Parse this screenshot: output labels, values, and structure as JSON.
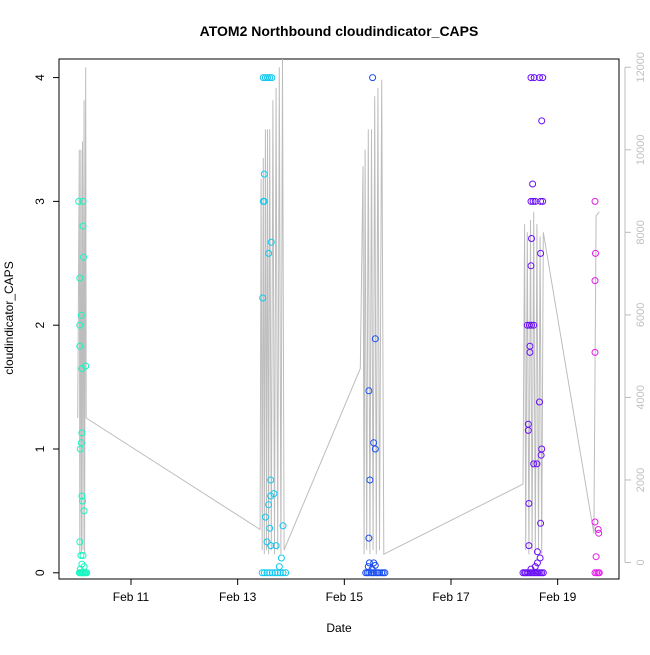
{
  "chart_data": {
    "type": "scatter",
    "title": "ATOM2 Northbound cloudindicator_CAPS",
    "xlabel": "Date",
    "ylabel": "cloudindicator_CAPS",
    "x_ticks": [
      "Feb 11",
      "Feb 13",
      "Feb 15",
      "Feb 17",
      "Feb 19"
    ],
    "x_tick_values": [
      11,
      13,
      15,
      17,
      19
    ],
    "xlim": [
      9.65,
      20.15
    ],
    "ylim": [
      -0.05,
      4.15
    ],
    "y_ticks": [
      0,
      1,
      2,
      3,
      4
    ],
    "y2_ticks": [
      0,
      2000,
      4000,
      6000,
      8000,
      10000,
      12000
    ],
    "y2lim": [
      -400,
      12200
    ],
    "grid": false,
    "legend": "none",
    "series": [
      {
        "group": 1,
        "color": "#19f5c2",
        "points": [
          [
            10.03,
            0
          ],
          [
            10.05,
            0
          ],
          [
            10.07,
            0
          ],
          [
            10.09,
            0
          ],
          [
            10.11,
            0
          ],
          [
            10.13,
            0
          ],
          [
            10.15,
            0
          ],
          [
            10.17,
            0
          ],
          [
            10.05,
            0.03
          ],
          [
            10.08,
            0.07
          ],
          [
            10.12,
            0.05
          ],
          [
            10.06,
            0.14
          ],
          [
            10.1,
            0.14
          ],
          [
            10.04,
            0.25
          ],
          [
            10.12,
            0.5
          ],
          [
            10.09,
            0.58
          ],
          [
            10.08,
            0.62
          ],
          [
            10.05,
            1.0
          ],
          [
            10.07,
            1.05
          ],
          [
            10.08,
            1.13
          ],
          [
            10.08,
            1.65
          ],
          [
            10.15,
            1.67
          ],
          [
            10.04,
            1.83
          ],
          [
            10.04,
            2.0
          ],
          [
            10.07,
            2.08
          ],
          [
            10.04,
            2.38
          ],
          [
            10.11,
            2.55
          ],
          [
            10.1,
            2.8
          ],
          [
            10.02,
            3.0
          ],
          [
            10.1,
            3.0
          ]
        ]
      },
      {
        "group": 2,
        "color": "#12c8f0",
        "points": [
          [
            13.46,
            0
          ],
          [
            13.5,
            0
          ],
          [
            13.55,
            0
          ],
          [
            13.6,
            0
          ],
          [
            13.65,
            0
          ],
          [
            13.7,
            0
          ],
          [
            13.75,
            0
          ],
          [
            13.8,
            0
          ],
          [
            13.85,
            0
          ],
          [
            13.9,
            0
          ],
          [
            13.78,
            0.05
          ],
          [
            13.82,
            0.12
          ],
          [
            13.62,
            0.22
          ],
          [
            13.72,
            0.22
          ],
          [
            13.55,
            0.25
          ],
          [
            13.85,
            0.38
          ],
          [
            13.6,
            0.36
          ],
          [
            13.52,
            0.45
          ],
          [
            13.58,
            0.55
          ],
          [
            13.62,
            0.62
          ],
          [
            13.68,
            0.64
          ],
          [
            13.62,
            0.75
          ],
          [
            13.47,
            2.22
          ],
          [
            13.58,
            2.58
          ],
          [
            13.63,
            2.67
          ],
          [
            13.5,
            3.22
          ],
          [
            13.48,
            3.0
          ],
          [
            13.5,
            3.0
          ],
          [
            13.48,
            4.0
          ],
          [
            13.52,
            4.0
          ],
          [
            13.56,
            4.0
          ],
          [
            13.6,
            4.0
          ],
          [
            13.64,
            4.0
          ]
        ]
      },
      {
        "group": 3,
        "color": "#1a50f0",
        "points": [
          [
            15.4,
            0
          ],
          [
            15.43,
            0
          ],
          [
            15.46,
            0
          ],
          [
            15.5,
            0
          ],
          [
            15.53,
            0
          ],
          [
            15.56,
            0
          ],
          [
            15.6,
            0
          ],
          [
            15.63,
            0
          ],
          [
            15.66,
            0
          ],
          [
            15.7,
            0
          ],
          [
            15.73,
            0
          ],
          [
            15.76,
            0
          ],
          [
            15.45,
            0.05
          ],
          [
            15.52,
            0.03
          ],
          [
            15.58,
            0.06
          ],
          [
            15.47,
            0.08
          ],
          [
            15.55,
            0.08
          ],
          [
            15.46,
            0.28
          ],
          [
            15.48,
            0.75
          ],
          [
            15.58,
            1.0
          ],
          [
            15.55,
            1.05
          ],
          [
            15.46,
            1.47
          ],
          [
            15.58,
            1.89
          ],
          [
            15.53,
            4.0
          ]
        ]
      },
      {
        "group": 4,
        "color": "#6a10f5",
        "points": [
          [
            18.35,
            0
          ],
          [
            18.38,
            0
          ],
          [
            18.4,
            0
          ],
          [
            18.43,
            0
          ],
          [
            18.46,
            0
          ],
          [
            18.49,
            0
          ],
          [
            18.52,
            0
          ],
          [
            18.55,
            0
          ],
          [
            18.58,
            0
          ],
          [
            18.61,
            0
          ],
          [
            18.64,
            0
          ],
          [
            18.67,
            0
          ],
          [
            18.7,
            0
          ],
          [
            18.73,
            0
          ],
          [
            18.5,
            0.03
          ],
          [
            18.58,
            0.05
          ],
          [
            18.62,
            0.08
          ],
          [
            18.67,
            0.12
          ],
          [
            18.62,
            0.17
          ],
          [
            18.46,
            0.22
          ],
          [
            18.68,
            0.4
          ],
          [
            18.46,
            0.56
          ],
          [
            18.55,
            0.88
          ],
          [
            18.61,
            0.88
          ],
          [
            18.69,
            0.95
          ],
          [
            18.7,
            1.0
          ],
          [
            18.45,
            1.15
          ],
          [
            18.45,
            1.2
          ],
          [
            18.66,
            1.38
          ],
          [
            18.48,
            1.78
          ],
          [
            18.48,
            1.83
          ],
          [
            18.43,
            2.0
          ],
          [
            18.47,
            2.0
          ],
          [
            18.51,
            2.0
          ],
          [
            18.55,
            2.0
          ],
          [
            18.5,
            2.48
          ],
          [
            18.68,
            2.58
          ],
          [
            18.51,
            2.7
          ],
          [
            18.5,
            3.0
          ],
          [
            18.54,
            3.0
          ],
          [
            18.58,
            3.0
          ],
          [
            18.68,
            3.0
          ],
          [
            18.72,
            3.0
          ],
          [
            18.53,
            3.14
          ],
          [
            18.7,
            3.65
          ],
          [
            18.5,
            4.0
          ],
          [
            18.56,
            4.0
          ],
          [
            18.66,
            4.0
          ],
          [
            18.72,
            4.0
          ]
        ]
      },
      {
        "group": 5,
        "color": "#e21be6",
        "points": [
          [
            19.7,
            0
          ],
          [
            19.73,
            0
          ],
          [
            19.76,
            0
          ],
          [
            19.78,
            0
          ],
          [
            19.72,
            0.13
          ],
          [
            19.77,
            0.32
          ],
          [
            19.76,
            0.35
          ],
          [
            19.7,
            0.41
          ],
          [
            19.7,
            1.78
          ],
          [
            19.7,
            2.36
          ],
          [
            19.71,
            2.58
          ],
          [
            19.7,
            3.0
          ]
        ]
      }
    ],
    "line_series": {
      "axis": "right",
      "color": "#bdbdbd",
      "x": [
        10.0,
        10.03,
        10.04,
        10.06,
        10.07,
        10.09,
        10.1,
        10.12,
        10.13,
        10.15,
        10.16,
        13.42,
        13.44,
        13.46,
        13.48,
        13.5,
        13.52,
        13.54,
        13.56,
        13.58,
        13.6,
        13.63,
        13.66,
        13.69,
        13.72,
        13.75,
        13.78,
        13.81,
        13.84,
        13.87,
        13.9,
        15.3,
        15.35,
        15.37,
        15.39,
        15.42,
        15.45,
        15.48,
        15.51,
        15.54,
        15.57,
        15.6,
        15.63,
        15.66,
        15.7,
        15.74,
        18.35,
        18.38,
        18.4,
        18.43,
        18.46,
        18.49,
        18.52,
        18.55,
        18.58,
        18.61,
        18.64,
        18.67,
        18.7,
        18.73,
        19.68,
        19.72,
        19.78
      ],
      "y": [
        3500,
        10000,
        200,
        10000,
        200,
        10200,
        300,
        11200,
        200,
        12000,
        3500,
        800,
        9300,
        300,
        9800,
        200,
        10500,
        300,
        10500,
        200,
        10500,
        300,
        11200,
        200,
        11500,
        300,
        12000,
        200,
        12200,
        300,
        400,
        4700,
        9600,
        200,
        10000,
        300,
        10500,
        200,
        10500,
        300,
        11300,
        200,
        11500,
        300,
        11700,
        200,
        1900,
        8200,
        300,
        8000,
        200,
        8300,
        300,
        8500,
        200,
        8200,
        300,
        7900,
        200,
        8000,
        700,
        8400,
        8500
      ]
    }
  }
}
